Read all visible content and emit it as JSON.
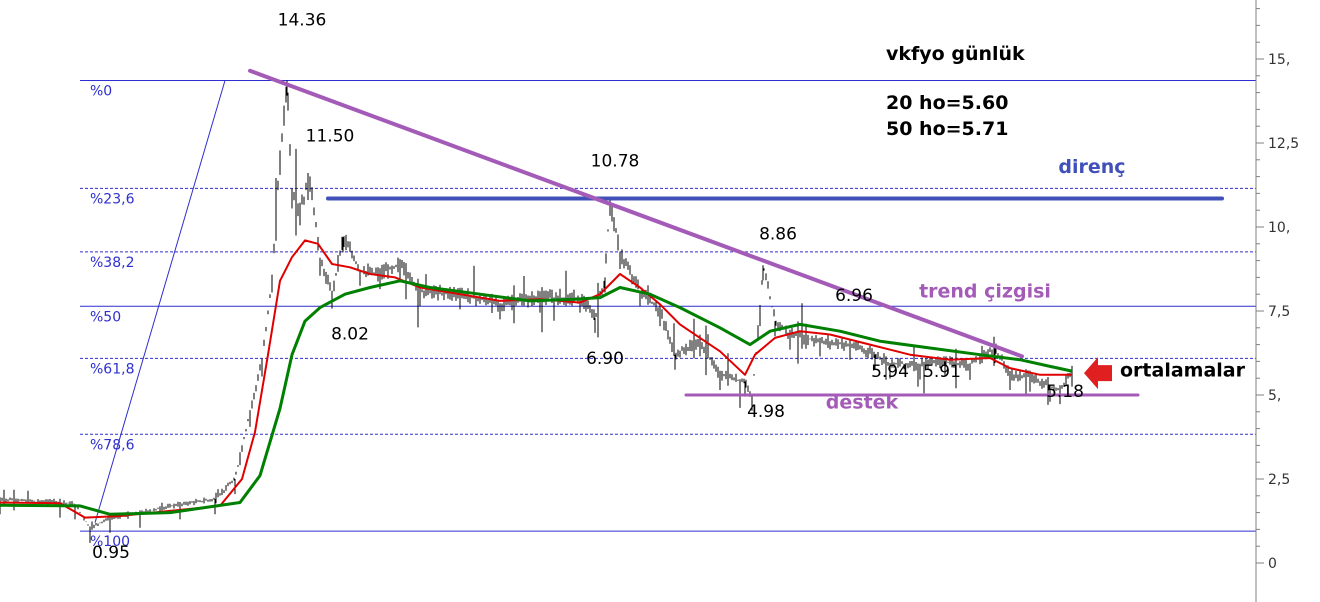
{
  "chart_data": {
    "type": "line",
    "title": "vkfyo günlük",
    "indicators": [
      "20 ho=5.60",
      "50 ho=5.71"
    ],
    "y_axis": {
      "side": "right",
      "ylim": [
        0,
        16.5
      ],
      "ticks": [
        {
          "value": 0,
          "label": "0"
        },
        {
          "value": 2.5,
          "label": "2,5"
        },
        {
          "value": 5,
          "label": "5,"
        },
        {
          "value": 7.5,
          "label": "7,5"
        },
        {
          "value": 10,
          "label": "10,"
        },
        {
          "value": 12.5,
          "label": "12,5"
        },
        {
          "value": 15,
          "label": "15,"
        }
      ]
    },
    "x_axis": {
      "label": "",
      "range": [
        0,
        1250
      ],
      "tick_labels": []
    },
    "grid": false,
    "price_bars_approx": [
      [
        0,
        1.9
      ],
      [
        60,
        1.8
      ],
      [
        75,
        1.75
      ],
      [
        90,
        1.05
      ],
      [
        110,
        1.35
      ],
      [
        140,
        1.5
      ],
      [
        180,
        1.75
      ],
      [
        215,
        1.9
      ],
      [
        235,
        2.5
      ],
      [
        250,
        4.5
      ],
      [
        262,
        6.0
      ],
      [
        272,
        8.5
      ],
      [
        280,
        12.0
      ],
      [
        287,
        14.36
      ],
      [
        292,
        11.0
      ],
      [
        300,
        10.5
      ],
      [
        310,
        11.5
      ],
      [
        320,
        9.0
      ],
      [
        332,
        8.02
      ],
      [
        343,
        9.7
      ],
      [
        360,
        8.7
      ],
      [
        380,
        8.6
      ],
      [
        400,
        8.9
      ],
      [
        420,
        8.1
      ],
      [
        460,
        8.0
      ],
      [
        500,
        7.7
      ],
      [
        540,
        7.9
      ],
      [
        580,
        7.9
      ],
      [
        595,
        7.3
      ],
      [
        605,
        8.5
      ],
      [
        610,
        10.78
      ],
      [
        620,
        9.2
      ],
      [
        640,
        8.1
      ],
      [
        660,
        7.5
      ],
      [
        675,
        6.2
      ],
      [
        700,
        6.6
      ],
      [
        720,
        5.6
      ],
      [
        745,
        5.4
      ],
      [
        752,
        4.98
      ],
      [
        760,
        7.5
      ],
      [
        763,
        8.86
      ],
      [
        775,
        7.2
      ],
      [
        790,
        6.8
      ],
      [
        820,
        6.6
      ],
      [
        850,
        6.5
      ],
      [
        875,
        6.2
      ],
      [
        890,
        5.94
      ],
      [
        920,
        5.91
      ],
      [
        945,
        6.0
      ],
      [
        970,
        5.9
      ],
      [
        995,
        6.4
      ],
      [
        1010,
        5.6
      ],
      [
        1030,
        5.55
      ],
      [
        1050,
        5.25
      ],
      [
        1060,
        5.18
      ],
      [
        1072,
        5.7
      ]
    ],
    "series": [
      {
        "name": "20 ho",
        "color": "#e00000",
        "points": [
          [
            0,
            1.8
          ],
          [
            60,
            1.78
          ],
          [
            85,
            1.35
          ],
          [
            120,
            1.4
          ],
          [
            170,
            1.55
          ],
          [
            220,
            1.7
          ],
          [
            242,
            2.5
          ],
          [
            255,
            3.9
          ],
          [
            268,
            6.2
          ],
          [
            280,
            8.4
          ],
          [
            292,
            9.1
          ],
          [
            305,
            9.6
          ],
          [
            318,
            9.5
          ],
          [
            332,
            8.9
          ],
          [
            350,
            8.8
          ],
          [
            370,
            8.6
          ],
          [
            395,
            8.5
          ],
          [
            420,
            8.2
          ],
          [
            460,
            8.0
          ],
          [
            500,
            7.8
          ],
          [
            540,
            7.85
          ],
          [
            580,
            7.75
          ],
          [
            600,
            8.0
          ],
          [
            620,
            8.6
          ],
          [
            640,
            8.2
          ],
          [
            660,
            7.7
          ],
          [
            680,
            7.1
          ],
          [
            700,
            6.7
          ],
          [
            720,
            6.3
          ],
          [
            745,
            5.6
          ],
          [
            755,
            6.2
          ],
          [
            775,
            6.7
          ],
          [
            800,
            6.9
          ],
          [
            830,
            6.8
          ],
          [
            870,
            6.5
          ],
          [
            910,
            6.2
          ],
          [
            950,
            6.05
          ],
          [
            990,
            6.1
          ],
          [
            1010,
            5.8
          ],
          [
            1040,
            5.6
          ],
          [
            1072,
            5.6
          ]
        ]
      },
      {
        "name": "50 ho",
        "color": "#008000",
        "points": [
          [
            0,
            1.72
          ],
          [
            80,
            1.7
          ],
          [
            110,
            1.45
          ],
          [
            170,
            1.5
          ],
          [
            240,
            1.8
          ],
          [
            260,
            2.6
          ],
          [
            280,
            4.6
          ],
          [
            292,
            6.2
          ],
          [
            305,
            7.2
          ],
          [
            320,
            7.6
          ],
          [
            345,
            8.0
          ],
          [
            370,
            8.2
          ],
          [
            400,
            8.4
          ],
          [
            430,
            8.2
          ],
          [
            480,
            8.0
          ],
          [
            530,
            7.8
          ],
          [
            575,
            7.85
          ],
          [
            600,
            7.9
          ],
          [
            620,
            8.2
          ],
          [
            650,
            8.0
          ],
          [
            680,
            7.6
          ],
          [
            720,
            7.0
          ],
          [
            750,
            6.5
          ],
          [
            770,
            6.9
          ],
          [
            800,
            7.1
          ],
          [
            840,
            6.9
          ],
          [
            880,
            6.6
          ],
          [
            930,
            6.4
          ],
          [
            980,
            6.2
          ],
          [
            1020,
            6.05
          ],
          [
            1050,
            5.85
          ],
          [
            1072,
            5.71
          ]
        ]
      }
    ],
    "fibonacci": {
      "color": "#2f2fcf",
      "levels": [
        {
          "label": "%0",
          "value": 14.36,
          "style": "solid"
        },
        {
          "label": "%23,6",
          "value": 11.15,
          "style": "dashed"
        },
        {
          "label": "%38,2",
          "value": 9.26,
          "style": "dashed"
        },
        {
          "label": "%50",
          "value": 7.64,
          "style": "solid"
        },
        {
          "label": "%61,8",
          "value": 6.09,
          "style": "dashed"
        },
        {
          "label": "%78,6",
          "value": 3.83,
          "style": "dashed"
        },
        {
          "label": "%100",
          "value": 0.95,
          "style": "solid"
        }
      ],
      "anchor_line": {
        "from": [
          95,
          1.2
        ],
        "to": [
          225,
          14.36
        ]
      }
    },
    "drawn_lines": [
      {
        "name": "direnç",
        "color": "#4050b8",
        "from": [
          328,
          10.85
        ],
        "to": [
          1222,
          10.85
        ]
      },
      {
        "name": "trend çizgisi",
        "color": "#a45bb8",
        "from": [
          250,
          14.65
        ],
        "to": [
          1022,
          6.15
        ]
      },
      {
        "name": "destek",
        "color": "#a45bb8",
        "from": [
          686,
          5.0
        ],
        "to": [
          1138,
          5.0
        ]
      }
    ],
    "price_annotations": [
      {
        "text": "14.36",
        "x": 302,
        "y": 16.0
      },
      {
        "text": "11.50",
        "x": 330,
        "y": 12.55
      },
      {
        "text": "10.78",
        "x": 615,
        "y": 11.8
      },
      {
        "text": "8.86",
        "x": 778,
        "y": 9.63
      },
      {
        "text": "6.96",
        "x": 854,
        "y": 7.8
      },
      {
        "text": "8.02",
        "x": 350,
        "y": 6.65
      },
      {
        "text": "6.90",
        "x": 605,
        "y": 5.92
      },
      {
        "text": "5.94",
        "x": 890,
        "y": 5.53
      },
      {
        "text": "5.91",
        "x": 942,
        "y": 5.53
      },
      {
        "text": "5.18",
        "x": 1065,
        "y": 4.94
      },
      {
        "text": "4.98",
        "x": 766,
        "y": 4.34
      },
      {
        "text": "0.95",
        "x": 111,
        "y": 0.15
      }
    ],
    "labels": [
      {
        "text": "direnç",
        "x": 1092,
        "y": 11.6,
        "color": "#4050b8"
      },
      {
        "text": "trend çizgisi",
        "x": 985,
        "y": 7.9,
        "color": "#a45bb8"
      },
      {
        "text": "destek",
        "x": 862,
        "y": 4.6,
        "color": "#a45bb8"
      },
      {
        "text": "ortalamalar",
        "x": 1120,
        "y": 5.55,
        "color": "#000000"
      }
    ],
    "arrow": {
      "color": "#e02020",
      "points_to": [
        1084,
        5.65
      ]
    }
  }
}
